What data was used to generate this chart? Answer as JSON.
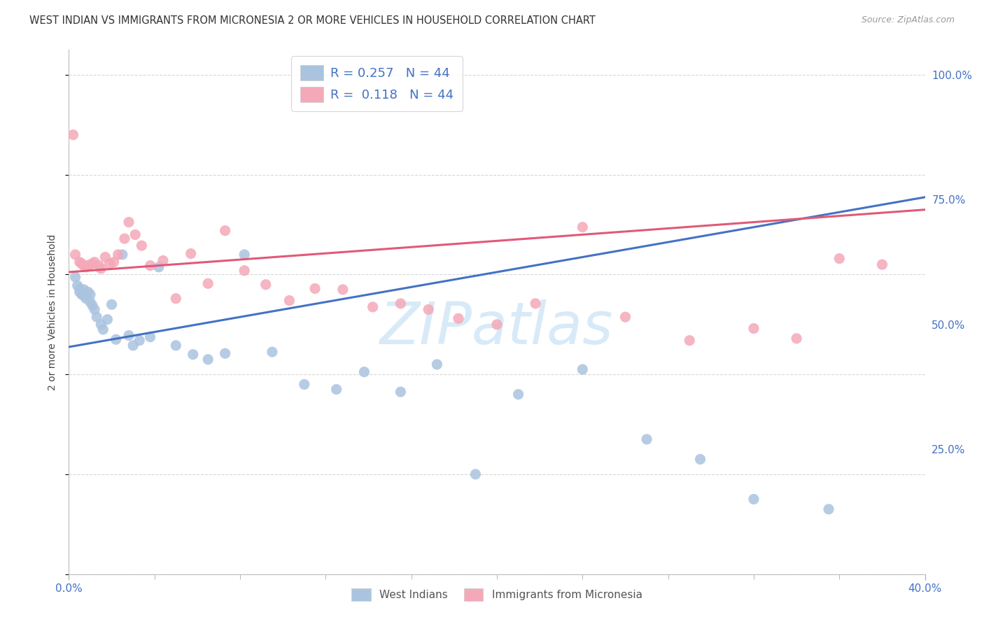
{
  "title": "WEST INDIAN VS IMMIGRANTS FROM MICRONESIA 2 OR MORE VEHICLES IN HOUSEHOLD CORRELATION CHART",
  "source": "Source: ZipAtlas.com",
  "ylabel": "2 or more Vehicles in Household",
  "legend_R_blue": "0.257",
  "legend_N_blue": "44",
  "legend_R_pink": "0.118",
  "legend_N_pink": "44",
  "legend_label_blue": "West Indians",
  "legend_label_pink": "Immigrants from Micronesia",
  "xmin": 0.0,
  "xmax": 0.4,
  "ymin": 0.0,
  "ymax": 1.05,
  "ytick_vals": [
    0.25,
    0.5,
    0.75,
    1.0
  ],
  "ytick_labels": [
    "25.0%",
    "50.0%",
    "75.0%",
    "100.0%"
  ],
  "xtick_major": [
    0.0,
    0.4
  ],
  "xtick_major_labels": [
    "0.0%",
    "40.0%"
  ],
  "xtick_minor": [
    0.04,
    0.08,
    0.12,
    0.16,
    0.2,
    0.24,
    0.28,
    0.32,
    0.36
  ],
  "blue_line_color": "#4472c4",
  "pink_line_color": "#e05a78",
  "blue_scatter_color": "#aac4e0",
  "pink_scatter_color": "#f4a8b8",
  "background_color": "#ffffff",
  "grid_color": "#cccccc",
  "title_color": "#333333",
  "axis_label_color": "#4472c4",
  "watermark_text": "ZIPatlas",
  "watermark_color": "#d8eaf8",
  "west_indians_x": [
    0.003,
    0.004,
    0.005,
    0.005,
    0.006,
    0.007,
    0.007,
    0.008,
    0.008,
    0.009,
    0.01,
    0.01,
    0.011,
    0.012,
    0.013,
    0.015,
    0.016,
    0.018,
    0.02,
    0.022,
    0.025,
    0.028,
    0.03,
    0.033,
    0.038,
    0.042,
    0.05,
    0.058,
    0.065,
    0.073,
    0.082,
    0.095,
    0.11,
    0.125,
    0.138,
    0.155,
    0.172,
    0.19,
    0.21,
    0.24,
    0.27,
    0.295,
    0.32,
    0.355
  ],
  "west_indians_y": [
    0.595,
    0.578,
    0.572,
    0.565,
    0.56,
    0.57,
    0.558,
    0.558,
    0.552,
    0.565,
    0.56,
    0.545,
    0.538,
    0.53,
    0.515,
    0.5,
    0.49,
    0.51,
    0.54,
    0.47,
    0.64,
    0.478,
    0.458,
    0.468,
    0.475,
    0.615,
    0.458,
    0.44,
    0.43,
    0.442,
    0.64,
    0.445,
    0.38,
    0.37,
    0.405,
    0.365,
    0.42,
    0.2,
    0.36,
    0.41,
    0.27,
    0.23,
    0.15,
    0.13
  ],
  "micronesia_x": [
    0.002,
    0.003,
    0.005,
    0.006,
    0.007,
    0.008,
    0.009,
    0.01,
    0.011,
    0.012,
    0.014,
    0.015,
    0.017,
    0.019,
    0.021,
    0.023,
    0.026,
    0.028,
    0.031,
    0.034,
    0.038,
    0.044,
    0.05,
    0.057,
    0.065,
    0.073,
    0.082,
    0.092,
    0.103,
    0.115,
    0.128,
    0.142,
    0.155,
    0.168,
    0.182,
    0.2,
    0.218,
    0.24,
    0.26,
    0.29,
    0.32,
    0.34,
    0.36,
    0.38
  ],
  "micronesia_y": [
    0.88,
    0.64,
    0.625,
    0.622,
    0.618,
    0.615,
    0.618,
    0.62,
    0.622,
    0.625,
    0.618,
    0.612,
    0.635,
    0.622,
    0.625,
    0.64,
    0.672,
    0.705,
    0.68,
    0.658,
    0.618,
    0.628,
    0.552,
    0.642,
    0.582,
    0.688,
    0.608,
    0.58,
    0.548,
    0.572,
    0.57,
    0.535,
    0.542,
    0.53,
    0.512,
    0.5,
    0.542,
    0.695,
    0.515,
    0.468,
    0.492,
    0.472,
    0.632,
    0.62
  ]
}
